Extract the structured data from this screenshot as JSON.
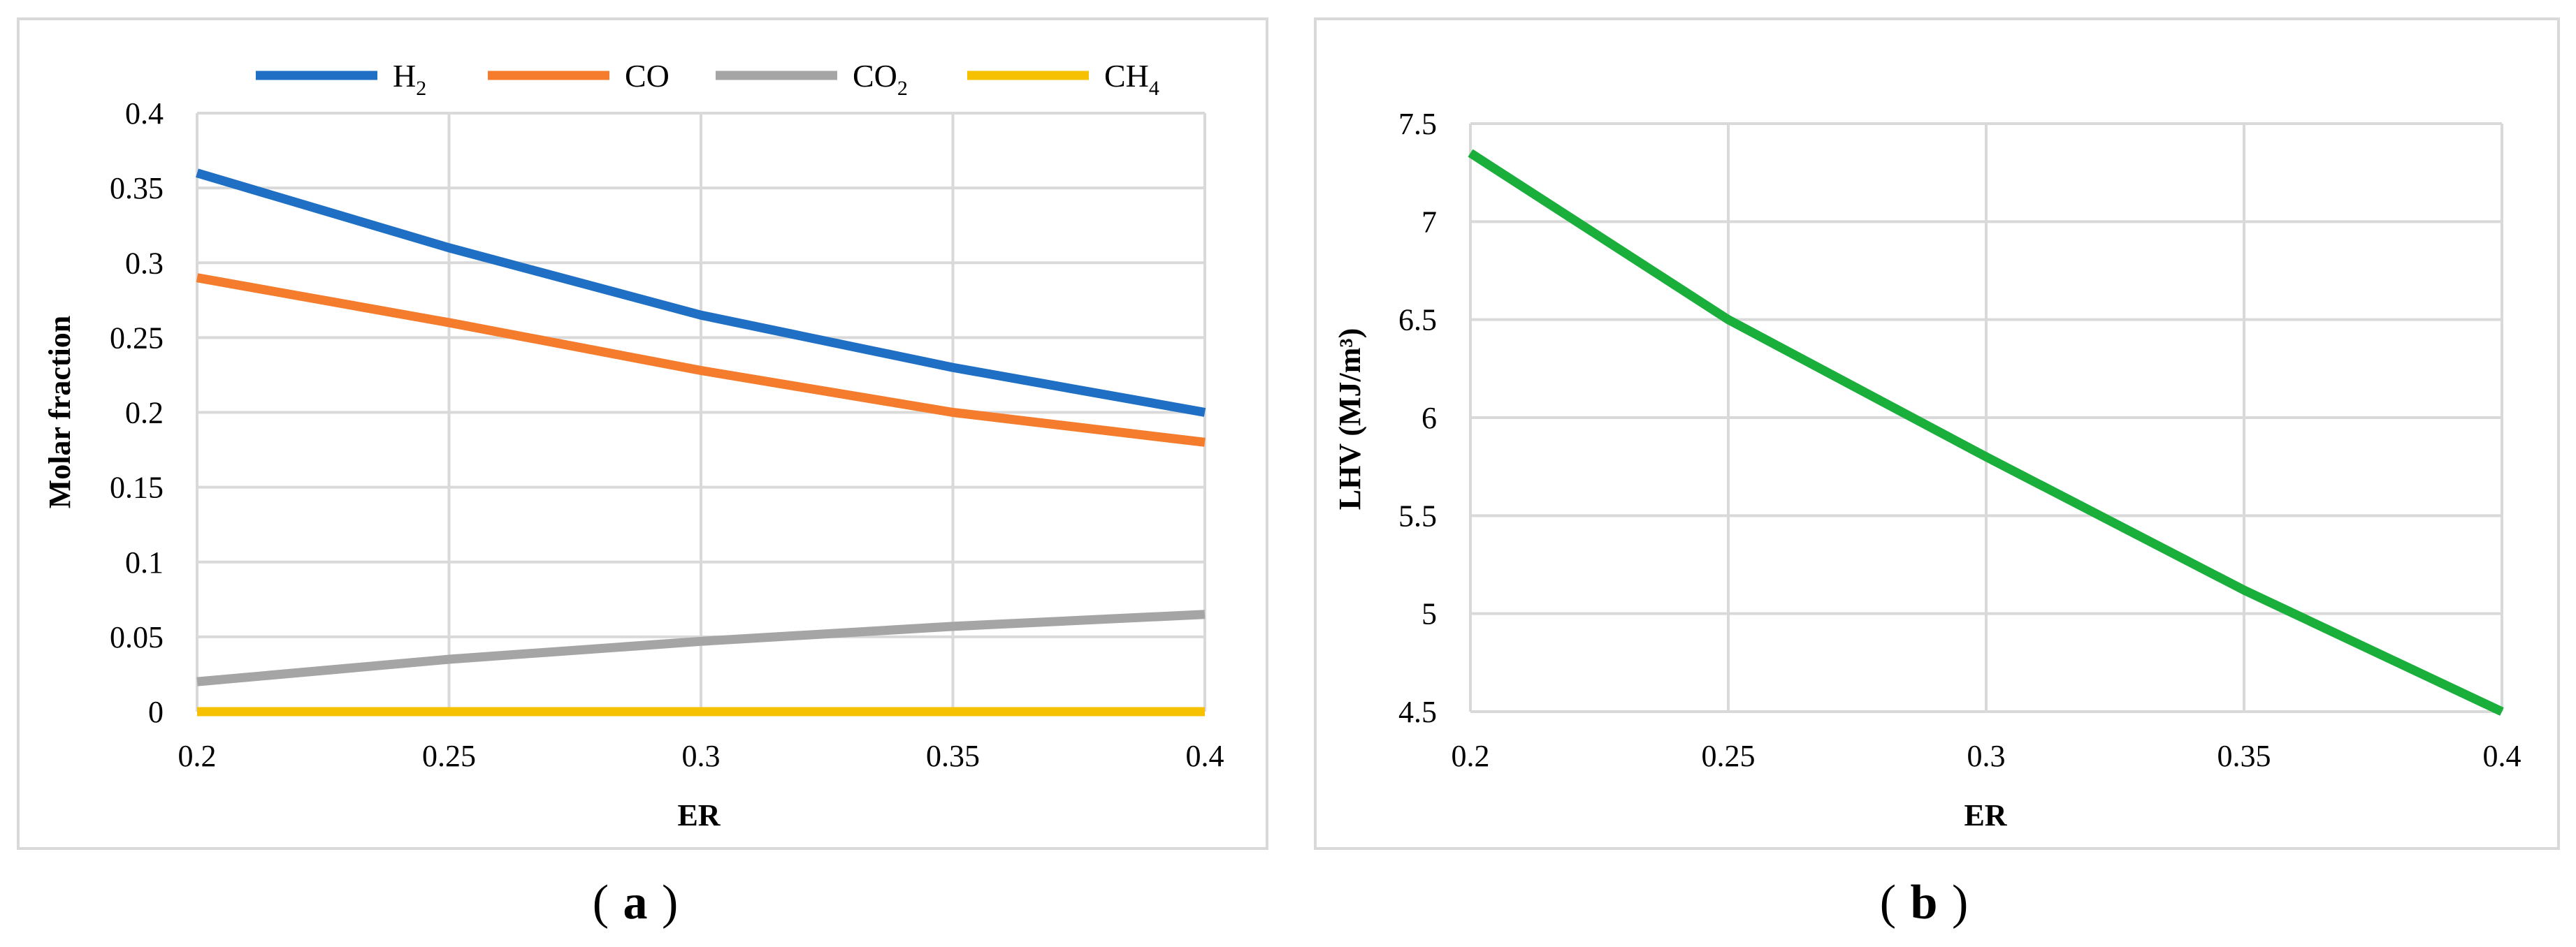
{
  "chart_data": [
    {
      "panel": "a",
      "type": "line",
      "caption_label": "a",
      "xlabel": "ER",
      "ylabel": "Molar fraction",
      "x": [
        0.2,
        0.25,
        0.3,
        0.35,
        0.4
      ],
      "x_tick_labels": [
        "0.2",
        "0.25",
        "0.3",
        "0.35",
        "0.4"
      ],
      "xlim": [
        0.2,
        0.4
      ],
      "ylim": [
        0,
        0.4
      ],
      "y_ticks": [
        0,
        0.05,
        0.1,
        0.15,
        0.2,
        0.25,
        0.3,
        0.35,
        0.4
      ],
      "y_tick_labels": [
        "0",
        "0.05",
        "0.1",
        "0.15",
        "0.2",
        "0.25",
        "0.3",
        "0.35",
        "0.4"
      ],
      "grid": true,
      "legend_position": "top",
      "series": [
        {
          "name": "H",
          "subscript": "2",
          "color": "#1f6fc4",
          "values": [
            0.36,
            0.31,
            0.265,
            0.23,
            0.2
          ]
        },
        {
          "name": "CO",
          "subscript": "",
          "color": "#f47c2c",
          "values": [
            0.29,
            0.26,
            0.228,
            0.2,
            0.18
          ]
        },
        {
          "name": "CO",
          "subscript": "2",
          "color": "#a5a5a5",
          "values": [
            0.02,
            0.035,
            0.047,
            0.057,
            0.065
          ]
        },
        {
          "name": "CH",
          "subscript": "4",
          "color": "#f5c100",
          "values": [
            0.0,
            0.0,
            0.0,
            0.0,
            0.0
          ]
        }
      ]
    },
    {
      "panel": "b",
      "type": "line",
      "caption_label": "b",
      "xlabel": "ER",
      "ylabel": "LHV (MJ/m³)",
      "x": [
        0.2,
        0.25,
        0.3,
        0.35,
        0.4
      ],
      "x_tick_labels": [
        "0.2",
        "0.25",
        "0.3",
        "0.35",
        "0.4"
      ],
      "xlim": [
        0.2,
        0.4
      ],
      "ylim": [
        4.5,
        7.5
      ],
      "y_ticks": [
        4.5,
        5,
        5.5,
        6,
        6.5,
        7,
        7.5
      ],
      "y_tick_labels": [
        "4.5",
        "5",
        "5.5",
        "6",
        "6.5",
        "7",
        "7.5"
      ],
      "grid": true,
      "series": [
        {
          "name": "LHV",
          "color": "#1aae3b",
          "values": [
            7.35,
            6.5,
            5.8,
            5.12,
            4.5
          ]
        }
      ]
    }
  ]
}
